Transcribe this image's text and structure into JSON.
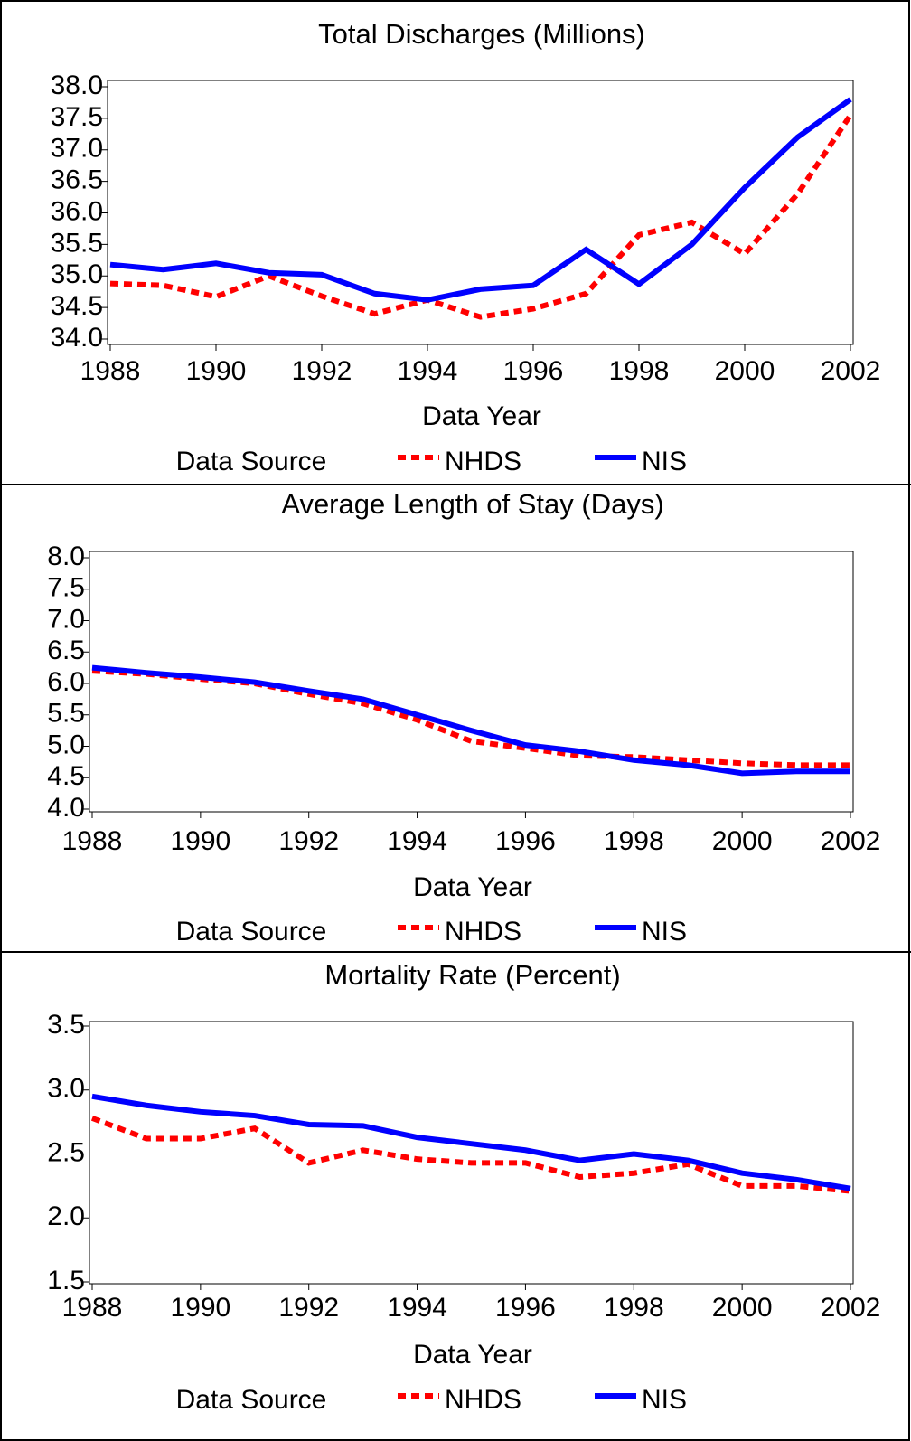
{
  "chart_data": [
    {
      "type": "line",
      "title": "Total Discharges (Millions)",
      "x": [
        1988,
        1989,
        1990,
        1991,
        1992,
        1993,
        1994,
        1995,
        1996,
        1997,
        1998,
        1999,
        2000,
        2001,
        2002
      ],
      "xlim": [
        1988,
        2002
      ],
      "xticks": [
        1988,
        1990,
        1992,
        1994,
        1996,
        1998,
        2000,
        2002
      ],
      "ylim": [
        34,
        38
      ],
      "yticks": [
        {
          "value": 34,
          "label": "34.0"
        },
        34.5,
        {
          "value": 35,
          "label": "35.0"
        },
        35.5,
        {
          "value": 36,
          "label": "36.0"
        },
        36.5,
        {
          "value": 37,
          "label": "37.0"
        },
        37.5,
        {
          "value": 38,
          "label": "38.0"
        }
      ],
      "x_label": "Data Year",
      "legend_title": "Data Source",
      "series": [
        {
          "name": "NHDS",
          "color": "#ff0000",
          "line_style": "dashed",
          "values": [
            34.88,
            34.85,
            34.67,
            35.0,
            34.68,
            34.4,
            34.62,
            34.35,
            34.48,
            34.72,
            35.65,
            35.85,
            35.35,
            36.3,
            37.55
          ]
        },
        {
          "name": "NIS",
          "color": "#0000ff",
          "line_style": "solid",
          "values": [
            35.18,
            35.1,
            35.2,
            35.05,
            35.02,
            34.72,
            34.62,
            34.79,
            34.85,
            35.42,
            34.87,
            35.5,
            36.4,
            37.2,
            37.8
          ]
        }
      ]
    },
    {
      "type": "line",
      "title": "Average Length of Stay (Days)",
      "x": [
        1988,
        1989,
        1990,
        1991,
        1992,
        1993,
        1994,
        1995,
        1996,
        1997,
        1998,
        1999,
        2000,
        2001,
        2002
      ],
      "xlim": [
        1988,
        2002
      ],
      "xticks": [
        1988,
        1990,
        1992,
        1994,
        1996,
        1998,
        2000,
        2002
      ],
      "ylim": [
        4,
        8
      ],
      "yticks": [
        {
          "value": 4,
          "label": "4.0"
        },
        4.5,
        {
          "value": 5,
          "label": "5.0"
        },
        5.5,
        {
          "value": 6,
          "label": "6.0"
        },
        6.5,
        {
          "value": 7,
          "label": "7.0"
        },
        7.5,
        {
          "value": 8,
          "label": "8.0"
        }
      ],
      "x_label": "Data Year",
      "legend_title": "Data Source",
      "series": [
        {
          "name": "NHDS",
          "color": "#ff0000",
          "line_style": "dashed",
          "values": [
            6.2,
            6.15,
            6.07,
            6.0,
            5.83,
            5.68,
            5.42,
            5.08,
            4.97,
            4.85,
            4.83,
            4.78,
            4.73,
            4.7,
            4.7
          ]
        },
        {
          "name": "NIS",
          "color": "#0000ff",
          "line_style": "solid",
          "values": [
            6.25,
            6.17,
            6.1,
            6.02,
            5.88,
            5.75,
            5.5,
            5.25,
            5.02,
            4.92,
            4.78,
            4.7,
            4.57,
            4.6,
            4.6
          ]
        }
      ]
    },
    {
      "type": "line",
      "title": "Mortality Rate (Percent)",
      "x": [
        1988,
        1989,
        1990,
        1991,
        1992,
        1993,
        1994,
        1995,
        1996,
        1997,
        1998,
        1999,
        2000,
        2001,
        2002
      ],
      "xlim": [
        1988,
        2002
      ],
      "xticks": [
        1988,
        1990,
        1992,
        1994,
        1996,
        1998,
        2000,
        2002
      ],
      "ylim": [
        1.5,
        3.5
      ],
      "yticks": [
        1.5,
        {
          "value": 2,
          "label": "2.0"
        },
        2.5,
        {
          "value": 3,
          "label": "3.0"
        },
        3.5
      ],
      "x_label": "Data Year",
      "legend_title": "Data Source",
      "series": [
        {
          "name": "NHDS",
          "color": "#ff0000",
          "line_style": "dashed",
          "values": [
            2.78,
            2.62,
            2.62,
            2.7,
            2.43,
            2.53,
            2.46,
            2.43,
            2.43,
            2.32,
            2.35,
            2.42,
            2.25,
            2.25,
            2.21
          ]
        },
        {
          "name": "NIS",
          "color": "#0000ff",
          "line_style": "solid",
          "values": [
            2.95,
            2.88,
            2.83,
            2.8,
            2.73,
            2.72,
            2.63,
            2.58,
            2.53,
            2.45,
            2.5,
            2.45,
            2.35,
            2.3,
            2.23
          ]
        }
      ]
    }
  ]
}
